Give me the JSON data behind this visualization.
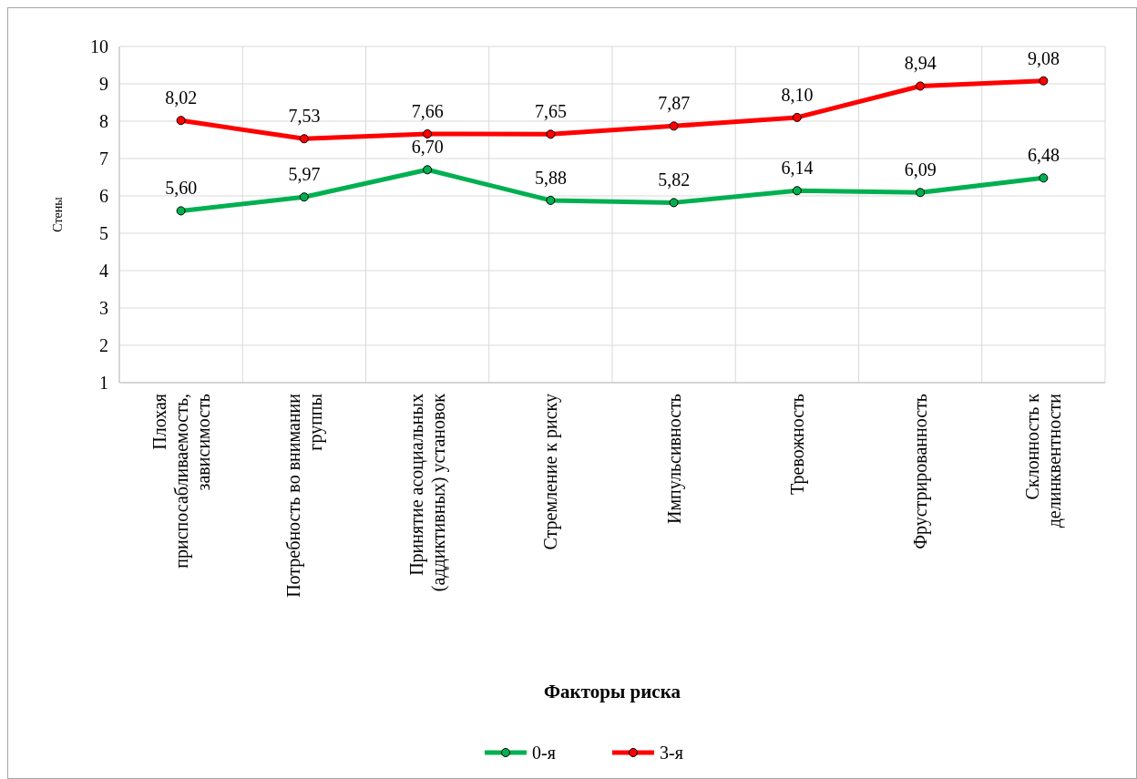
{
  "chart_data": {
    "type": "line",
    "xlabel": "Факторы риска",
    "ylabel": "Стены",
    "categories": [
      "Плохая приспосабливаемость, зависимость",
      "Потребность во внимании группы",
      "Принятие асоциальных (аддиктивных) установок",
      "Стремление к риску",
      "Импульсивность",
      "Тревожность",
      "Фрустрированность",
      "Склонность к делинквентности"
    ],
    "series": [
      {
        "name": "0-я",
        "color": "#00b050",
        "values": [
          5.6,
          5.97,
          6.7,
          5.88,
          5.82,
          6.14,
          6.09,
          6.48
        ],
        "value_labels": [
          "5,60",
          "5,97",
          "6,70",
          "5,88",
          "5,82",
          "6,14",
          "6,09",
          "6,48"
        ]
      },
      {
        "name": "3-я",
        "color": "#ff0000",
        "values": [
          8.02,
          7.53,
          7.66,
          7.65,
          7.87,
          8.1,
          8.94,
          9.08
        ],
        "value_labels": [
          "8,02",
          "7,53",
          "7,66",
          "7,65",
          "7,87",
          "8,10",
          "8,94",
          "9,08"
        ]
      }
    ],
    "ylim": [
      1,
      10
    ],
    "yticks": [
      1,
      2,
      3,
      4,
      5,
      6,
      7,
      8,
      9,
      10
    ],
    "grid": true,
    "legend": "bottom",
    "marker": "circle",
    "line_style": "solid"
  }
}
